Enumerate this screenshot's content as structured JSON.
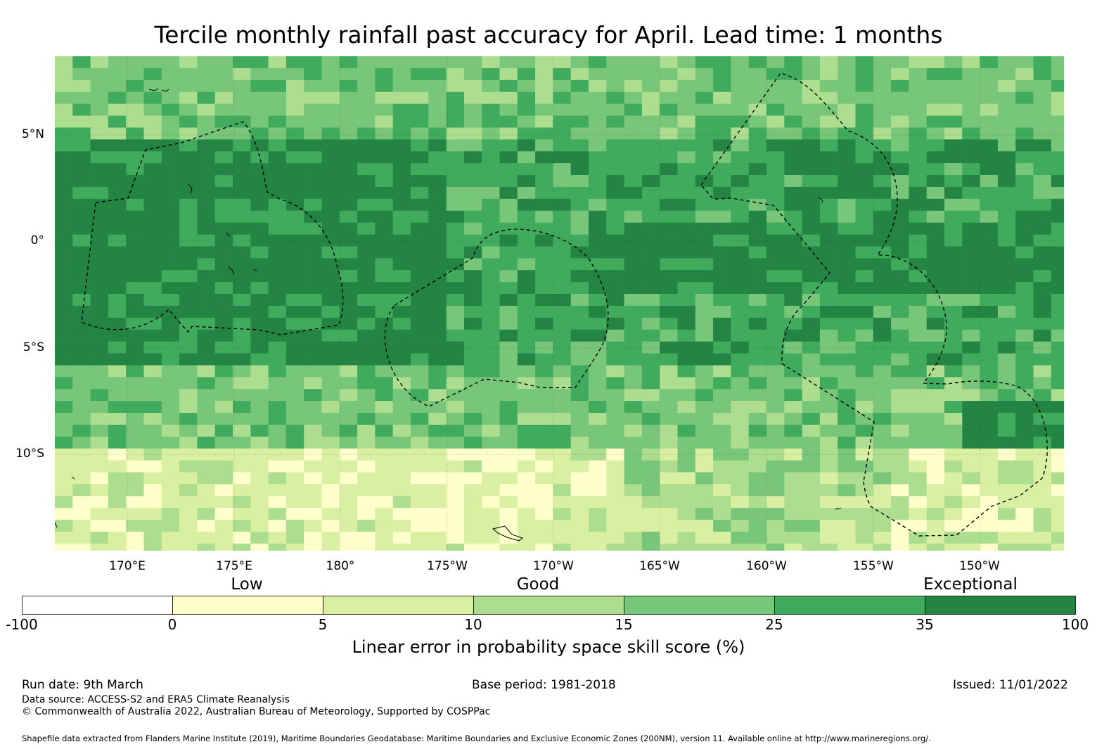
{
  "title": "Tercile monthly rainfall past accuracy for April. Lead time: 1 months",
  "map": {
    "lat_labels": [
      "5°N",
      "0°",
      "5°S",
      "10°S"
    ],
    "lon_labels": [
      "170°E",
      "175°E",
      "180°",
      "175°W",
      "170°W",
      "165°W",
      "160°W",
      "155°W",
      "150°W"
    ],
    "category_labels": {
      "low": "Low",
      "good": "Good",
      "exceptional": "Exceptional"
    },
    "colors": {
      "lt0": "#ffffff",
      "c0_5": "#ffffcc",
      "c5_10": "#d9f0a3",
      "c10_15": "#addd8e",
      "c15_25": "#78c679",
      "c25_35": "#41ab5d",
      "c35_100": "#238443"
    }
  },
  "legend": {
    "ticks": [
      "-100",
      "0",
      "5",
      "10",
      "15",
      "25",
      "35",
      "100"
    ],
    "colors": [
      "#ffffff",
      "#ffffcc",
      "#d9f0a3",
      "#addd8e",
      "#78c679",
      "#41ab5d",
      "#238443"
    ],
    "title": "Linear error in probability space skill score (%)"
  },
  "footer": {
    "run_date": "Run date: 9th March",
    "base_period": "Base period: 1981-2018",
    "issued": "Issued: 11/01/2022",
    "data_source": "Data source: ACCESS-S2 and ERA5 Climate Reanalysis",
    "copyright": "© Commonwealth of Australia 2022, Australian Bureau of Meteorology, Supported by COSPPac",
    "shapefile": "Shapefile data extracted from Flanders Marine Institute (2019), Maritime Boundaries Geodatabase: Maritime Boundaries and Exclusive Economic Zones (200NM), version 11. Available online at http://www.marineregions.org/."
  }
}
